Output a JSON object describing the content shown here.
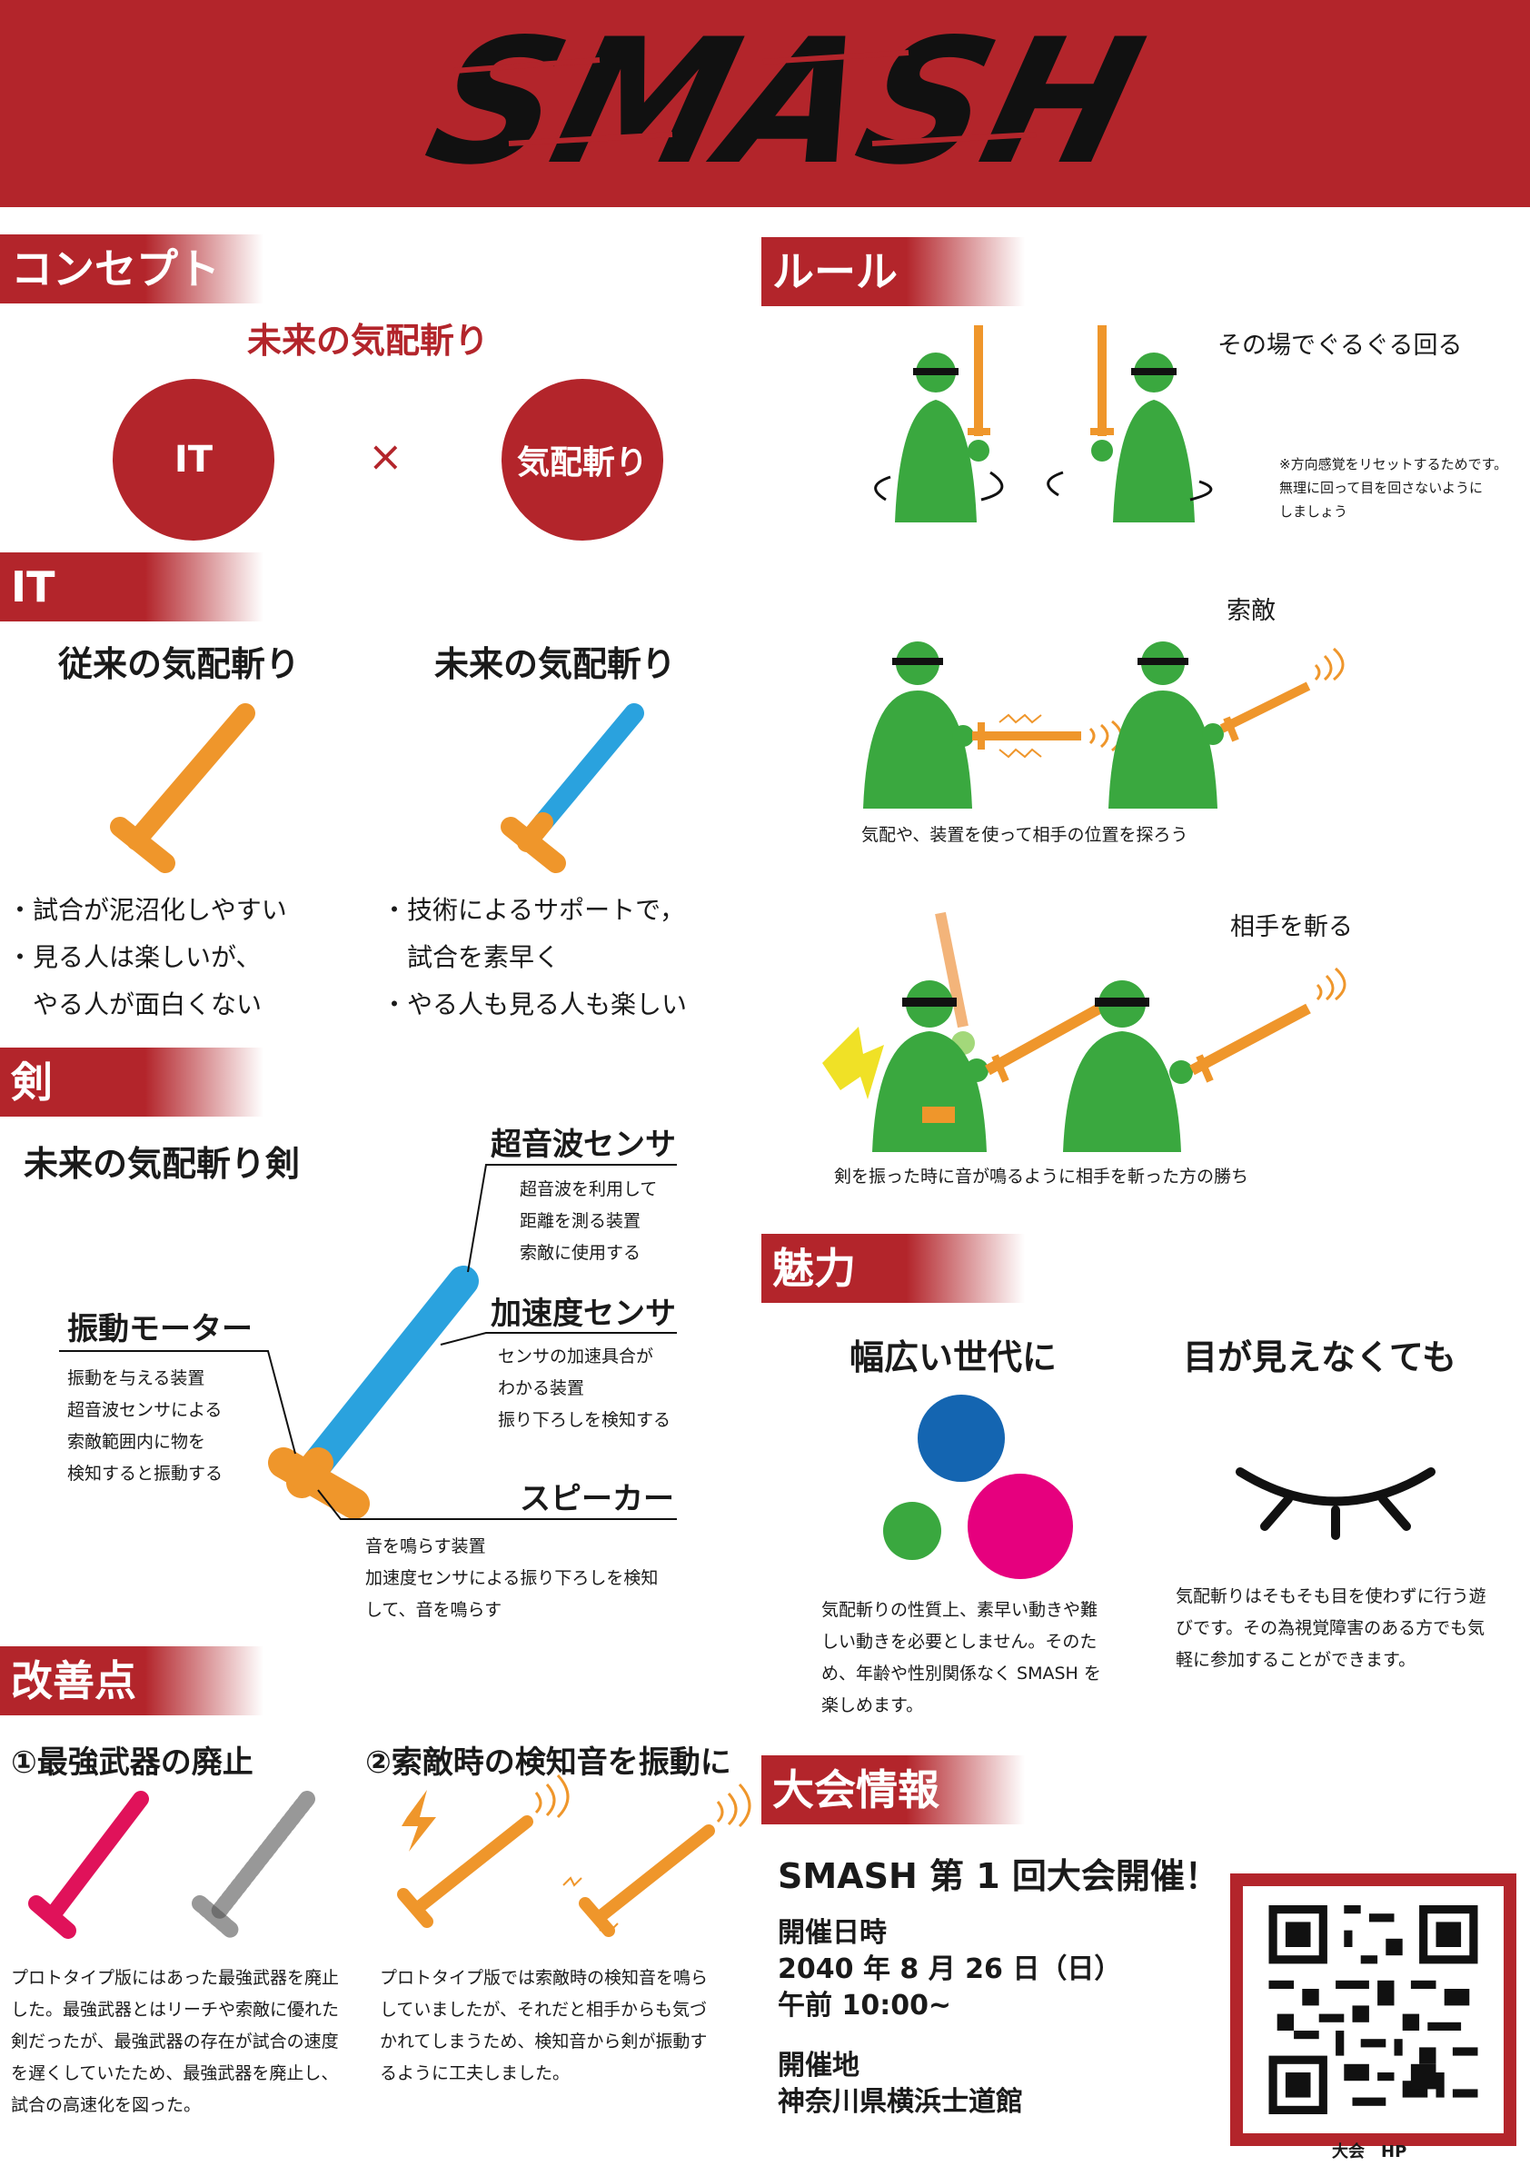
{
  "header": {
    "logo_text": "SMASH"
  },
  "concept": {
    "heading": "コンセプト",
    "tagline": "未来の気配斬り",
    "left_circle": "IT",
    "times": "×",
    "right_circle": "気配斬り"
  },
  "it": {
    "heading": "IT",
    "old_title": "従来の気配斬り",
    "new_title": "未来の気配斬り",
    "old_points": [
      "・試合が泥沼化しやすい",
      "・見る人は楽しいが、",
      "　やる人が面白くない"
    ],
    "new_points": [
      "・技術によるサポートで，",
      "　試合を素早く",
      "・やる人も見る人も楽しい"
    ]
  },
  "sword": {
    "heading": "剣",
    "title": "未来の気配斬り剣",
    "ultrasonic": {
      "label": "超音波センサ",
      "desc": "超音波を利用して\n距離を測る装置\n索敵に使用する"
    },
    "accel": {
      "label": "加速度センサ",
      "desc": "センサの加速具合が\nわかる装置\n振り下ろしを検知する"
    },
    "motor": {
      "label": "振動モーター",
      "desc": "振動を与える装置\n超音波センサによる\n索敵範囲内に物を\n検知すると振動する"
    },
    "speaker": {
      "label": "スピーカー",
      "desc": "音を鳴らす装置\n加速度センサによる振り下ろしを検知\nして、音を鳴らす"
    }
  },
  "improve": {
    "heading": "改善点",
    "item1_title": "①最強武器の廃止",
    "item1_desc": "プロトタイプ版にはあった最強武器を廃止\nした。最強武器とはリーチや索敵に優れた\n剣だったが、最強武器の存在が試合の速度\nを遅くしていたため、最強武器を廃止し、\n試合の高速化を図った。",
    "item2_title": "②索敵時の検知音を振動に",
    "item2_desc": "プロトタイプ版では索敵時の検知音を鳴ら\nしていましたが、それだと相手からも気づ\nかれてしまうため、検知音から剣が振動す\nるように工夫しました。"
  },
  "rules": {
    "heading": "ルール",
    "step1": "その場でぐるぐる回る",
    "note": "※方向感覚をリセットするためです。\n無理に回って目を回さないように\nしましょう",
    "step2": "索敵",
    "step2_caption": "気配や、装置を使って相手の位置を探ろう",
    "step3": "相手を斬る",
    "step3_caption": "剣を振った時に音が鳴るように相手を斬った方の勝ち"
  },
  "appeal": {
    "heading": "魅力",
    "col1_title": "幅広い世代に",
    "col1_desc": "気配斬りの性質上、素早い動きや難\nしい動きを必要としません。そのた\nめ、年齢や性別関係なく SMASH を\n楽しめます。",
    "col2_title": "目が見えなくても",
    "col2_desc": "気配斬りはそもそも目を使わずに行う遊\nびです。その為視覚障害のある方でも気\n軽に参加することができます。"
  },
  "event": {
    "heading": "大会情報",
    "headline": "SMASH 第 1 回大会開催！",
    "date_label": "開催日時",
    "date": "2040 年 8 月 26 日（日）",
    "time": "午前 10:00~",
    "venue_label": "開催地",
    "venue": "神奈川県横浜士道館",
    "qr_caption": "大会　HP"
  },
  "colors": {
    "red": "#b3252b",
    "orange": "#ef962b",
    "blue": "#2aa2de",
    "green": "#3aa83f",
    "pink": "#e0125a",
    "magenta": "#e6007e",
    "dark_blue": "#1465b1"
  }
}
